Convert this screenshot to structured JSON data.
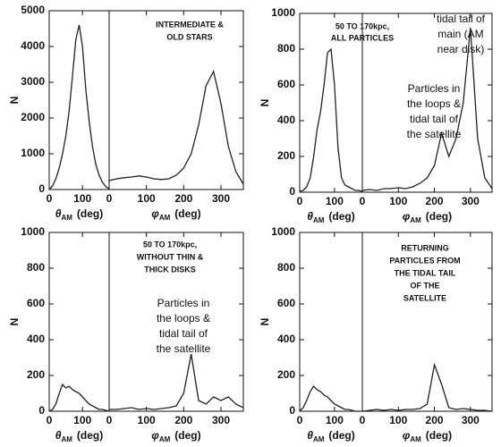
{
  "chart_data": [
    {
      "type": "line",
      "ylabel": "N",
      "ylim": [
        0,
        5000
      ],
      "yticks": [
        0,
        1000,
        2000,
        3000,
        4000,
        5000
      ],
      "color": "#222222",
      "annotations": [
        {
          "lines": [
            "INTERMEDIATE &",
            "OLD STARS"
          ]
        }
      ],
      "panels": [
        {
          "xlabel": {
            "symbol": "θ",
            "sub": "AM",
            "unit": "(deg)"
          },
          "xlim": [
            0,
            180
          ],
          "xticks": [
            0,
            100
          ],
          "x": [
            0,
            10,
            20,
            30,
            40,
            50,
            60,
            70,
            80,
            90,
            100,
            110,
            120,
            130,
            140,
            150,
            160,
            170,
            180
          ],
          "values": [
            0,
            100,
            300,
            600,
            1000,
            1500,
            2200,
            3200,
            4200,
            4600,
            4000,
            2800,
            1900,
            1200,
            700,
            400,
            200,
            80,
            20
          ]
        },
        {
          "xlabel": {
            "symbol": "φ",
            "sub": "AM",
            "unit": "(deg)"
          },
          "xlim": [
            0,
            360
          ],
          "xticks": [
            0,
            100,
            200,
            300
          ],
          "x": [
            0,
            20,
            40,
            60,
            80,
            100,
            120,
            140,
            160,
            180,
            200,
            220,
            240,
            260,
            280,
            300,
            320,
            340,
            360
          ],
          "values": [
            250,
            300,
            330,
            350,
            380,
            350,
            300,
            280,
            300,
            400,
            600,
            1000,
            1800,
            2900,
            3300,
            2400,
            1200,
            500,
            150
          ]
        }
      ]
    },
    {
      "type": "line",
      "ylabel": "N",
      "ylim": [
        0,
        1000
      ],
      "yticks": [
        0,
        200,
        400,
        600,
        800,
        1000
      ],
      "color": "#222222",
      "annotations": [
        {
          "lines": [
            "50 TO 170kpc,",
            "ALL PARTICLES"
          ]
        },
        {
          "lines": [
            "tidal tail of",
            "main (AM",
            "near disk)"
          ]
        },
        {
          "lines": [
            "Particles in",
            "the loops &",
            "tidal tail of",
            "the satellite"
          ]
        }
      ],
      "panels": [
        {
          "xlabel": {
            "symbol": "θ",
            "sub": "AM",
            "unit": "(deg)"
          },
          "xlim": [
            0,
            180
          ],
          "xticks": [
            0,
            100
          ],
          "x": [
            0,
            10,
            20,
            30,
            40,
            50,
            60,
            70,
            80,
            90,
            100,
            110,
            120,
            130,
            140,
            150,
            160,
            170,
            180
          ],
          "values": [
            5,
            10,
            30,
            80,
            200,
            350,
            450,
            600,
            780,
            800,
            600,
            250,
            80,
            40,
            30,
            20,
            10,
            10,
            5
          ]
        },
        {
          "xlabel": {
            "symbol": "φ",
            "sub": "AM",
            "unit": "(deg)"
          },
          "xlim": [
            0,
            360
          ],
          "xticks": [
            0,
            100,
            200,
            300
          ],
          "x": [
            0,
            20,
            40,
            60,
            80,
            100,
            120,
            140,
            160,
            180,
            200,
            220,
            240,
            260,
            280,
            300,
            320,
            340,
            360
          ],
          "values": [
            10,
            15,
            10,
            20,
            20,
            25,
            20,
            30,
            50,
            80,
            150,
            330,
            200,
            300,
            500,
            920,
            300,
            80,
            20
          ]
        }
      ]
    },
    {
      "type": "line",
      "ylabel": "N",
      "ylim": [
        0,
        1000
      ],
      "yticks": [
        0,
        200,
        400,
        600,
        800,
        1000
      ],
      "color": "#222222",
      "annotations": [
        {
          "lines": [
            "50 TO 170kpc,",
            "WITHOUT THIN &",
            "THICK DISKS"
          ]
        },
        {
          "lines": [
            "Particles in",
            "the loops &",
            "tidal tail of",
            "the satellite"
          ]
        }
      ],
      "panels": [
        {
          "xlabel": {
            "symbol": "θ",
            "sub": "AM",
            "unit": "(deg)"
          },
          "xlim": [
            0,
            180
          ],
          "xticks": [
            0,
            100
          ],
          "x": [
            0,
            10,
            20,
            30,
            40,
            50,
            60,
            70,
            80,
            90,
            100,
            110,
            120,
            130,
            140,
            150,
            160,
            170,
            180
          ],
          "values": [
            0,
            10,
            40,
            100,
            150,
            130,
            140,
            120,
            110,
            100,
            80,
            60,
            40,
            30,
            20,
            10,
            10,
            5,
            0
          ]
        },
        {
          "xlabel": {
            "symbol": "φ",
            "sub": "AM",
            "unit": "(deg)"
          },
          "xlim": [
            0,
            360
          ],
          "xticks": [
            0,
            100,
            200,
            300
          ],
          "x": [
            0,
            20,
            40,
            60,
            80,
            100,
            120,
            140,
            160,
            180,
            200,
            220,
            240,
            260,
            280,
            300,
            320,
            340,
            360
          ],
          "values": [
            10,
            10,
            15,
            20,
            10,
            15,
            10,
            15,
            20,
            30,
            100,
            320,
            60,
            40,
            80,
            60,
            80,
            40,
            20
          ]
        }
      ]
    },
    {
      "type": "line",
      "ylabel": "N",
      "ylim": [
        0,
        1000
      ],
      "yticks": [
        0,
        200,
        400,
        600,
        800,
        1000
      ],
      "color": "#222222",
      "annotations": [
        {
          "lines": [
            "RETURNING",
            "PARTICLES FROM",
            "THE TIDAL TAIL",
            "OF THE",
            "SATELLITE"
          ]
        }
      ],
      "panels": [
        {
          "xlabel": {
            "symbol": "θ",
            "sub": "AM",
            "unit": "(deg)"
          },
          "xlim": [
            0,
            180
          ],
          "xticks": [
            0,
            100
          ],
          "x": [
            0,
            10,
            20,
            30,
            40,
            50,
            60,
            70,
            80,
            90,
            100,
            110,
            120,
            130,
            140,
            150,
            160,
            170,
            180
          ],
          "values": [
            0,
            20,
            60,
            110,
            140,
            120,
            110,
            90,
            80,
            60,
            40,
            30,
            20,
            10,
            10,
            5,
            0,
            0,
            0
          ]
        },
        {
          "xlabel": {
            "symbol": "φ",
            "sub": "AM",
            "unit": "(deg)"
          },
          "xlim": [
            0,
            360
          ],
          "xticks": [
            0,
            100,
            200,
            300
          ],
          "x": [
            0,
            20,
            40,
            60,
            80,
            100,
            120,
            140,
            160,
            180,
            200,
            220,
            240,
            260,
            280,
            300,
            320,
            340,
            360
          ],
          "values": [
            0,
            5,
            10,
            5,
            10,
            5,
            10,
            10,
            15,
            40,
            260,
            150,
            20,
            10,
            15,
            10,
            5,
            5,
            0
          ]
        }
      ]
    }
  ]
}
